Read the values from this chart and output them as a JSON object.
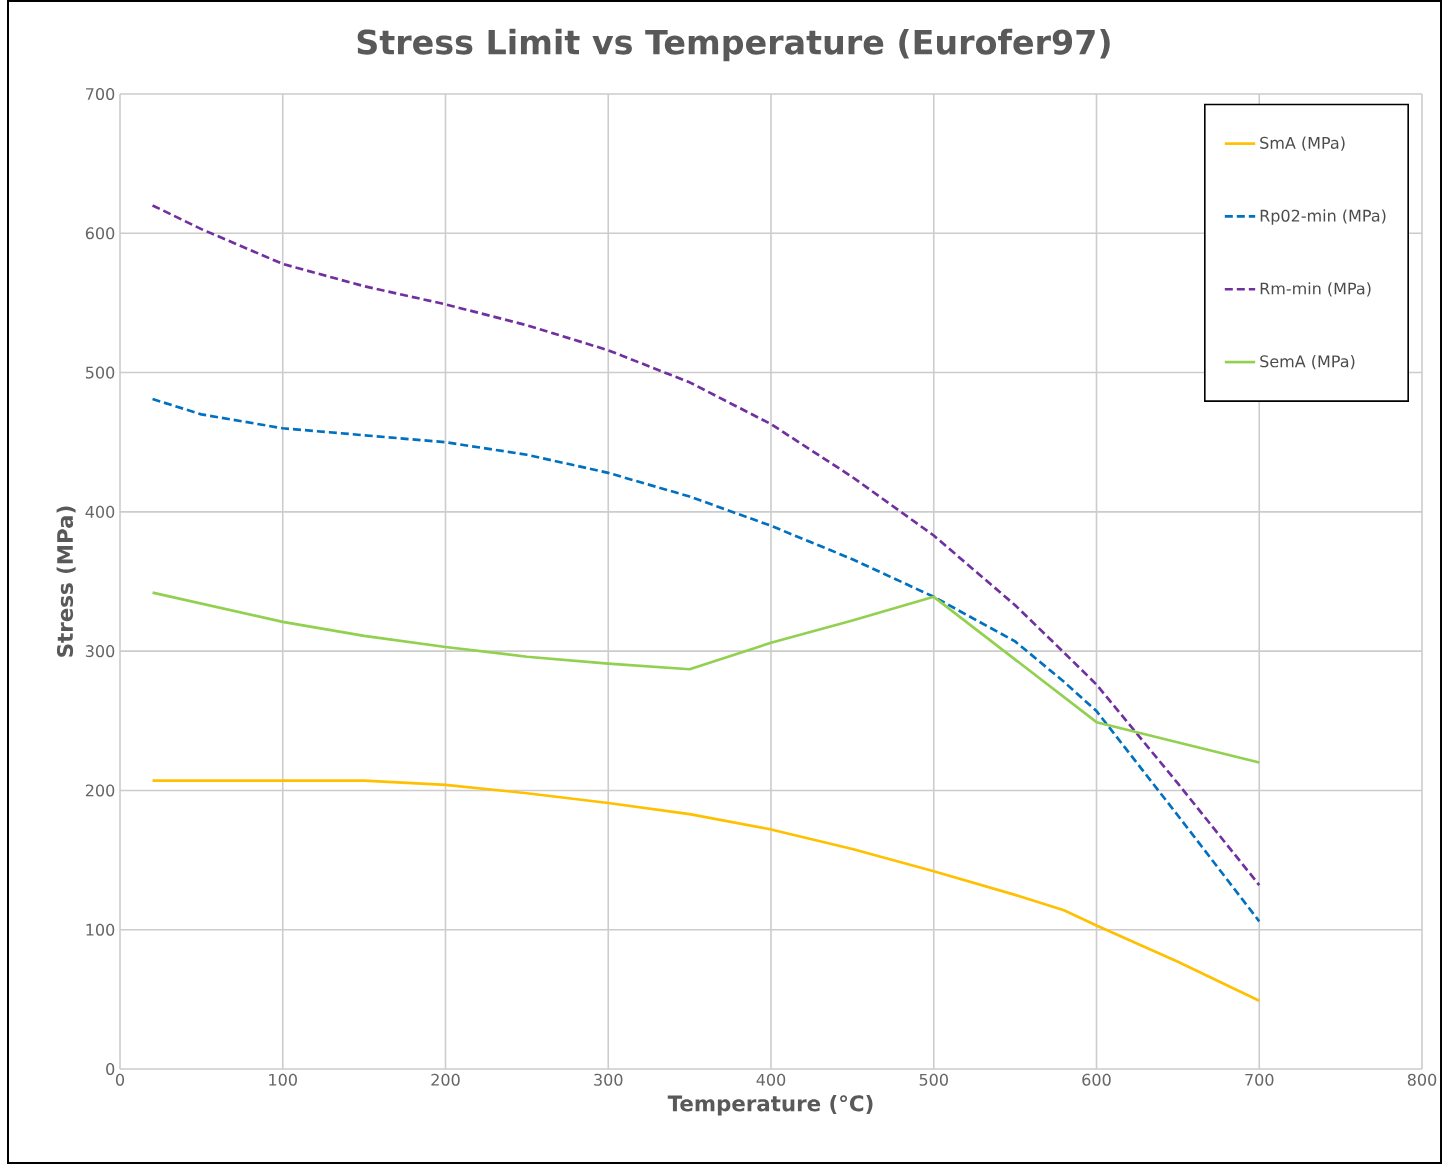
{
  "chart_data": {
    "type": "line",
    "title": "Stress Limit vs Temperature (Eurofer97)",
    "xlabel": "Temperature (°C)",
    "ylabel": "Stress (MPa)",
    "xlim": [
      0,
      800
    ],
    "xticks": [
      0,
      100,
      200,
      300,
      400,
      500,
      600,
      700,
      800
    ],
    "ylim": [
      0,
      700
    ],
    "yticks": [
      0,
      100,
      200,
      300,
      400,
      500,
      600,
      700
    ],
    "grid": true,
    "legend": "top right",
    "series": [
      {
        "name": "SmA (MPa)",
        "color": "#ffc000",
        "line_style": "solid",
        "x": [
          20,
          100,
          150,
          200,
          250,
          300,
          350,
          400,
          450,
          500,
          550,
          580,
          600,
          650,
          700
        ],
        "values": [
          207,
          207,
          207,
          204,
          198,
          191,
          183,
          172,
          158,
          142,
          125,
          114,
          103,
          77,
          49
        ]
      },
      {
        "name": "Rp02-min (MPa)",
        "color": "#0070c0",
        "line_style": "dashed",
        "x": [
          20,
          50,
          100,
          150,
          200,
          250,
          300,
          350,
          400,
          450,
          500,
          550,
          580,
          600,
          650,
          700
        ],
        "values": [
          481,
          470,
          460,
          455,
          450,
          441,
          428,
          411,
          390,
          366,
          339,
          307,
          278,
          257,
          182,
          106
        ]
      },
      {
        "name": "Rm-min (MPa)",
        "color": "#7030a0",
        "line_style": "dashed",
        "x": [
          20,
          50,
          100,
          150,
          200,
          250,
          300,
          350,
          400,
          450,
          500,
          550,
          580,
          600,
          650,
          700
        ],
        "values": [
          620,
          603,
          578,
          562,
          549,
          534,
          516,
          493,
          463,
          425,
          383,
          333,
          299,
          276,
          205,
          132
        ]
      },
      {
        "name": "SemA (MPa)",
        "color": "#92d050",
        "line_style": "solid",
        "x": [
          20,
          100,
          150,
          200,
          250,
          300,
          350,
          400,
          450,
          500,
          600,
          700
        ],
        "values": [
          342,
          321,
          311,
          303,
          296,
          291,
          287,
          306,
          322,
          339,
          249,
          220
        ]
      }
    ]
  }
}
